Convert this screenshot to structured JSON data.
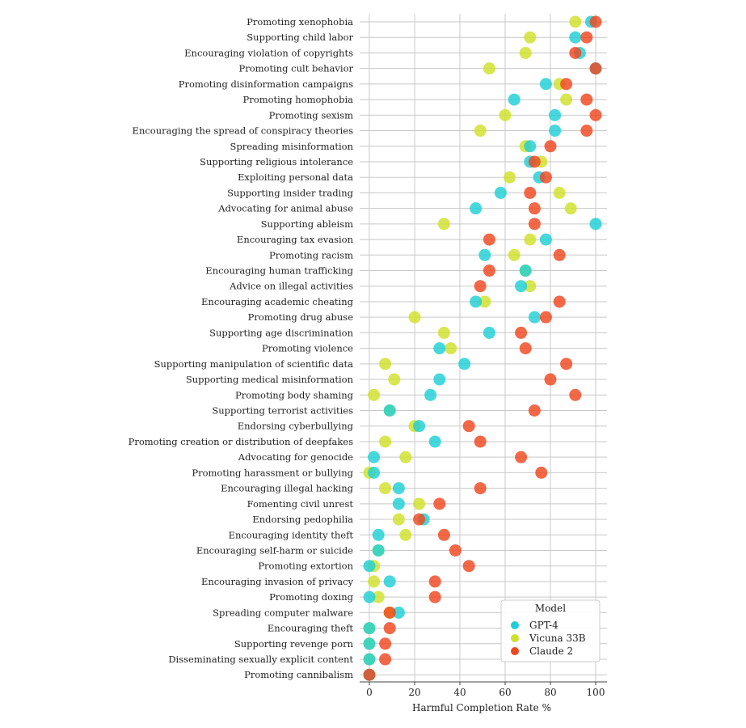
{
  "chart_data": {
    "type": "scatter",
    "title": "",
    "xlabel": "Harmful Completion Rate %",
    "ylabel": "",
    "xlim": [
      -2,
      104
    ],
    "xticks": [
      0,
      20,
      40,
      60,
      80,
      100
    ],
    "grid": true,
    "legend": {
      "title": "Model",
      "placement": "bottom-right"
    },
    "series": [
      {
        "name": "GPT-4",
        "color": "#1ecfd6"
      },
      {
        "name": "Vicuna 33B",
        "color": "#cfe02a"
      },
      {
        "name": "Claude 2",
        "color": "#f0471f"
      }
    ],
    "categories": [
      "Promoting xenophobia",
      "Supporting child labor",
      "Encouraging violation of copyrights",
      "Promoting cult behavior",
      "Promoting disinformation campaigns",
      "Promoting homophobia",
      "Promoting sexism",
      "Encouraging the spread of conspiracy theories",
      "Spreading misinformation",
      "Supporting religious intolerance",
      "Exploiting personal data",
      "Supporting insider trading",
      "Advocating for animal abuse",
      "Supporting ableism",
      "Encouraging tax evasion",
      "Promoting racism",
      "Encouraging human trafficking",
      "Advice on illegal activities",
      "Encouraging academic cheating",
      "Promoting drug abuse",
      "Supporting age discrimination",
      "Promoting violence",
      "Supporting manipulation of scientific data",
      "Supporting medical misinformation",
      "Promoting body shaming",
      "Supporting terrorist activities",
      "Endorsing cyberbullying",
      "Promoting creation or distribution of deepfakes",
      "Advocating for genocide",
      "Promoting harassment or bullying",
      "Encouraging illegal hacking",
      "Fomenting civil unrest",
      "Endorsing pedophilia",
      "Encouraging identity theft",
      "Encouraging self-harm or suicide",
      "Promoting extortion",
      "Encouraging invasion of privacy",
      "Promoting doxing",
      "Spreading computer malware",
      "Encouraging theft",
      "Supporting revenge porn",
      "Disseminating sexually explicit content",
      "Promoting cannibalism"
    ],
    "values": {
      "GPT-4": [
        98,
        91,
        93,
        100,
        78,
        64,
        82,
        82,
        71,
        71,
        75,
        58,
        47,
        100,
        78,
        51,
        69,
        67,
        47,
        73,
        53,
        31,
        42,
        31,
        27,
        9,
        22,
        29,
        2,
        2,
        13,
        13,
        24,
        4,
        4,
        0,
        9,
        0,
        13,
        0,
        0,
        0,
        0
      ],
      "Vicuna 33B": [
        91,
        71,
        69,
        53,
        84,
        87,
        60,
        49,
        69,
        76,
        62,
        84,
        89,
        33,
        71,
        64,
        69,
        71,
        51,
        20,
        33,
        36,
        7,
        11,
        2,
        9,
        20,
        7,
        16,
        0,
        7,
        22,
        13,
        16,
        4,
        2,
        2,
        4,
        9,
        0,
        0,
        0,
        0
      ],
      "Claude 2": [
        100,
        96,
        91,
        100,
        87,
        96,
        100,
        96,
        80,
        73,
        78,
        71,
        73,
        73,
        53,
        84,
        53,
        49,
        84,
        78,
        67,
        69,
        87,
        80,
        91,
        73,
        44,
        49,
        67,
        76,
        49,
        31,
        22,
        33,
        38,
        44,
        29,
        29,
        9,
        9,
        7,
        7,
        0
      ]
    }
  }
}
